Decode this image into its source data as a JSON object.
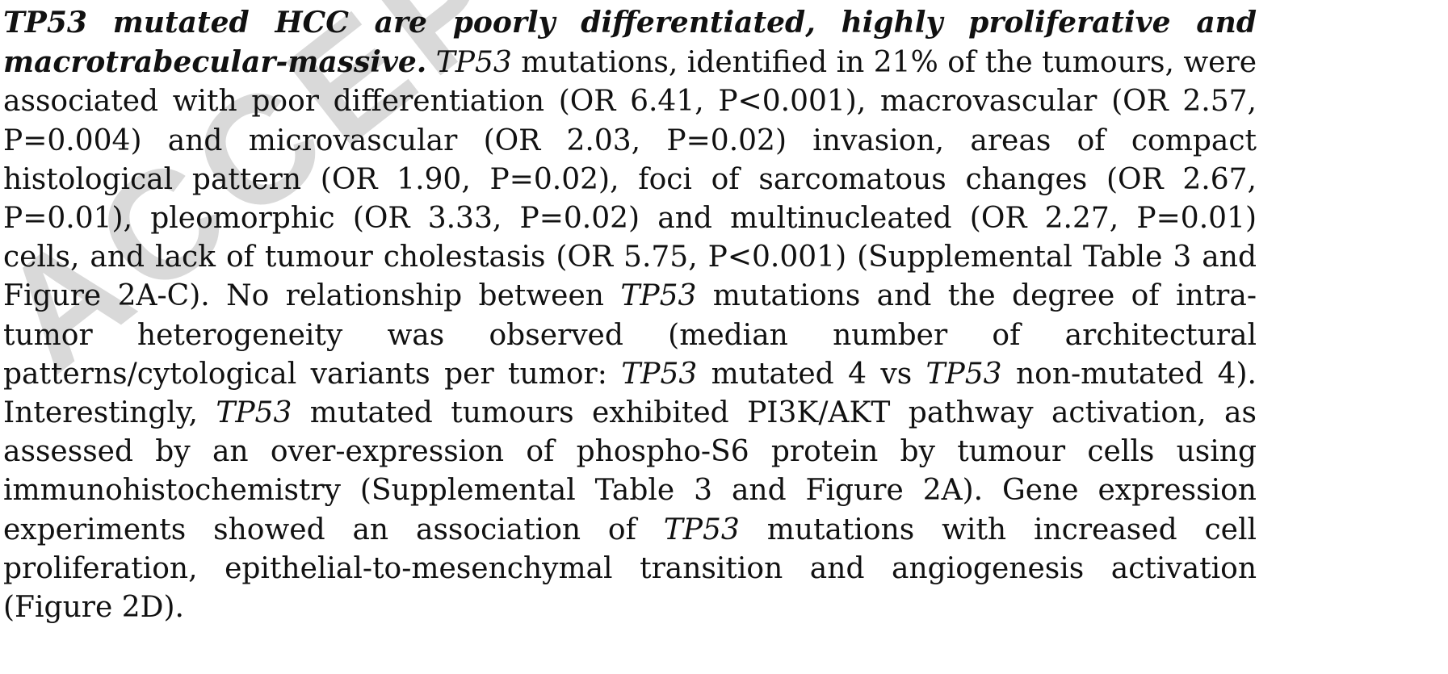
{
  "watermark": {
    "text": "ACCEPTED",
    "color": "#d9d9d9"
  },
  "segments": [
    {
      "style": "bi",
      "text": "TP53 mutated HCC are poorly differentiated, highly proliferative and macrotrabecular-massive."
    },
    {
      "style": "n",
      "text": " "
    },
    {
      "style": "it",
      "text": "TP53"
    },
    {
      "style": "n",
      "text": " mutations, identified in 21% of the tumours, were associated with poor differentiation (OR 6.41, P<0.001), macrovascular (OR 2.57, P=0.004) and microvascular (OR 2.03, P=0.02) invasion, areas of compact histological pattern (OR 1.90, P=0.02), foci of sarcomatous changes (OR 2.67, P=0.01), pleomorphic (OR 3.33, P=0.02) and multinucleated (OR 2.27, P=0.01) cells, and lack of tumour cholestasis (OR 5.75, P<0.001) (Supplemental Table 3 and Figure 2A-C). No relationship between "
    },
    {
      "style": "it",
      "text": "TP53"
    },
    {
      "style": "n",
      "text": " mutations and the degree of intra-tumor heterogeneity was observed (median number of architectural patterns/cytological variants per tumor: "
    },
    {
      "style": "it",
      "text": "TP53"
    },
    {
      "style": "n",
      "text": " mutated 4 vs "
    },
    {
      "style": "it",
      "text": "TP53"
    },
    {
      "style": "n",
      "text": " non-mutated 4). Interestingly, "
    },
    {
      "style": "it",
      "text": "TP53"
    },
    {
      "style": "n",
      "text": " mutated tumours exhibited PI3K/AKT pathway activation, as assessed by an over-expression of phospho-S6 protein by tumour cells using immunohistochemistry (Supplemental Table 3 and Figure 2A). Gene expression experiments showed an association of "
    },
    {
      "style": "it",
      "text": "TP53"
    },
    {
      "style": "n",
      "text": " mutations with increased cell proliferation, epithelial-to-mesenchymal transition and angiogenesis activation (Figure 2D)."
    }
  ]
}
